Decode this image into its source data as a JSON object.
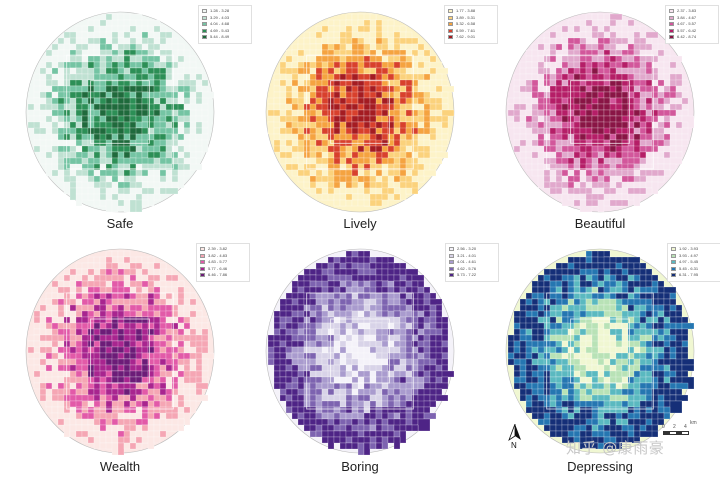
{
  "panels": [
    {
      "title": "Safe",
      "colors": [
        "#f2f8f5",
        "#bfe1d2",
        "#74c4a3",
        "#2c8f56",
        "#1f6a3c"
      ],
      "legend": [
        "1.28 - 3.28",
        "3.29 - 4.03",
        "4.04 - 4.68",
        "4.69 - 5.43",
        "5.44 - 8.49"
      ]
    },
    {
      "title": "Lively",
      "colors": [
        "#fdf3c8",
        "#fbd27c",
        "#f5a340",
        "#d8402c",
        "#a41c22"
      ],
      "legend": [
        "1.77 - 3.88",
        "3.89 - 5.31",
        "5.32 - 6.58",
        "6.59 - 7.61",
        "7.62 - 9.01"
      ]
    },
    {
      "title": "Beautiful",
      "colors": [
        "#f7e6f0",
        "#e1a8cc",
        "#d2579b",
        "#b51e67",
        "#891545"
      ],
      "legend": [
        "2.37 - 3.83",
        "3.84 - 4.67",
        "4.67 - 5.57",
        "5.57 - 6.42",
        "6.42 - 8.74"
      ]
    },
    {
      "title": "Wealth",
      "colors": [
        "#fce8e5",
        "#f5a6b4",
        "#e25aa8",
        "#a8258f",
        "#6c1c78"
      ],
      "legend": [
        "2.39 - 3.82",
        "3.82 - 4.83",
        "4.83 - 5.77",
        "5.77 - 6.46",
        "6.46 - 7.86"
      ]
    },
    {
      "title": "Boring",
      "colors": [
        "#f4f2f9",
        "#d8d3e8",
        "#a99bce",
        "#7d63b0",
        "#4e2486"
      ],
      "legend": [
        "2.56 - 3.20",
        "3.21 - 4.01",
        "4.01 - 4.61",
        "4.62 - 5.76",
        "5.73 - 7.22"
      ]
    },
    {
      "title": "Depressing",
      "colors": [
        "#f0f7d2",
        "#b8e2b6",
        "#5ab9c0",
        "#2576b1",
        "#152f78"
      ],
      "legend": [
        "1.92 - 3.93",
        "3.93 - 4.97",
        "4.97 - 5.45",
        "5.45 - 6.31",
        "6.31 - 7.95"
      ]
    }
  ],
  "scale_bar": {
    "label": "km",
    "ticks": [
      "0",
      "2",
      "4"
    ]
  },
  "north_label": "N",
  "watermark": "知乎 @康雨豪"
}
